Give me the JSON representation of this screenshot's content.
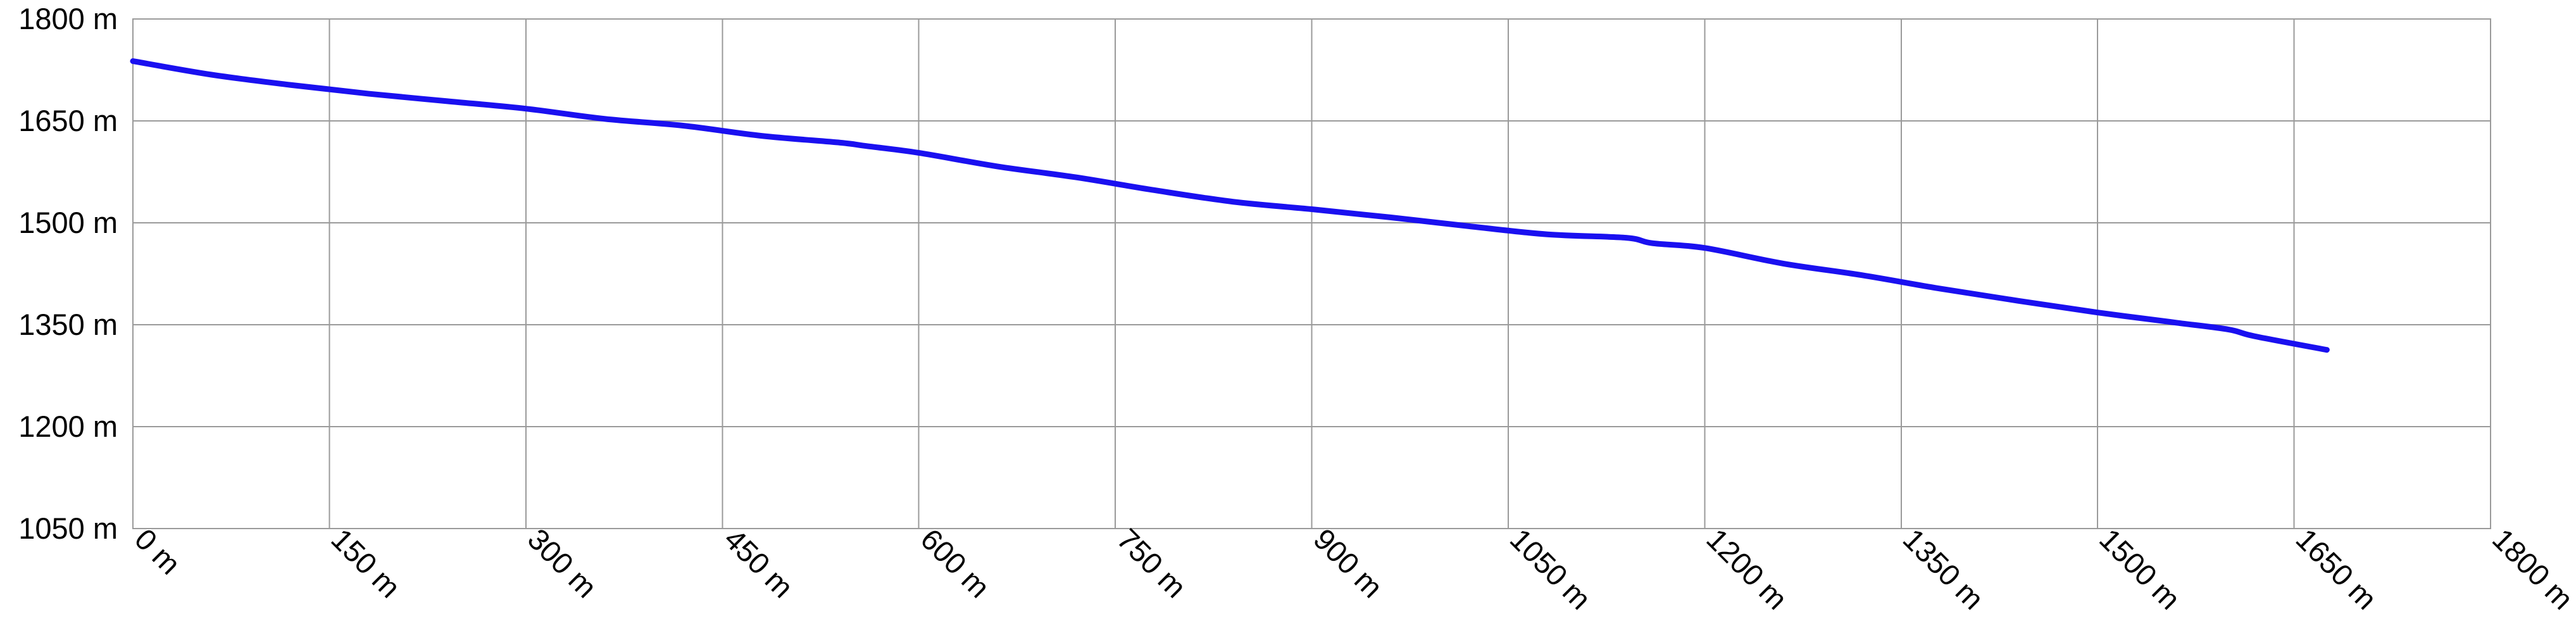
{
  "chart_data": {
    "type": "line",
    "title": "",
    "xlabel": "",
    "ylabel": "",
    "xlim": [
      0,
      1800
    ],
    "ylim": [
      1050,
      1800
    ],
    "x_ticks": [
      0,
      150,
      300,
      450,
      600,
      750,
      900,
      1050,
      1200,
      1350,
      1500,
      1650,
      1800
    ],
    "y_ticks": [
      1050,
      1200,
      1350,
      1500,
      1650,
      1800
    ],
    "x_tick_labels": [
      "0 m",
      "150 m",
      "300 m",
      "450 m",
      "600 m",
      "750 m",
      "900 m",
      "1050 m",
      "1200 m",
      "1350 m",
      "1500 m",
      "1650 m",
      "1800 m"
    ],
    "y_tick_labels": [
      "1050 m",
      "1200 m",
      "1350 m",
      "1500 m",
      "1650 m",
      "1800 m"
    ],
    "grid": true,
    "legend": "none",
    "colors": {
      "line": "#1a10f0",
      "grid": "#9a9a9a",
      "text": "#000000"
    },
    "series": [
      {
        "x": [
          0,
          60,
          120,
          180,
          240,
          300,
          360,
          420,
          480,
          540,
          560,
          600,
          660,
          720,
          780,
          840,
          900,
          960,
          1020,
          1080,
          1140,
          1160,
          1200,
          1260,
          1320,
          1380,
          1440,
          1500,
          1560,
          1600,
          1620,
          1675
        ],
        "y": [
          1738,
          1718,
          1703,
          1690,
          1679,
          1668,
          1653,
          1643,
          1628,
          1618,
          1613,
          1603,
          1583,
          1567,
          1548,
          1531,
          1520,
          1508,
          1495,
          1483,
          1478,
          1470,
          1463,
          1440,
          1423,
          1403,
          1385,
          1368,
          1353,
          1343,
          1333,
          1313
        ]
      }
    ]
  }
}
